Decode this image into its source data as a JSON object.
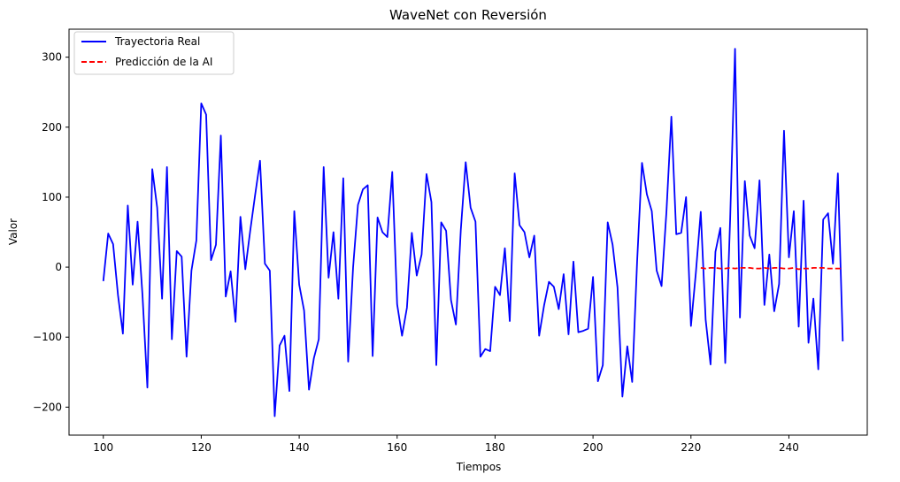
{
  "chart_data": {
    "type": "line",
    "title": "WaveNet con Reversión",
    "xlabel": "Tiempos",
    "ylabel": "Valor",
    "xlim": [
      93,
      256
    ],
    "ylim": [
      -240,
      340
    ],
    "xticks": [
      100,
      120,
      140,
      160,
      180,
      200,
      220,
      240
    ],
    "yticks": [
      -200,
      -100,
      0,
      100,
      200,
      300
    ],
    "legend": "top-left",
    "grid": false,
    "series": [
      {
        "name": "Trayectoria Real",
        "color": "#0000ff",
        "style": "solid",
        "x_start": 100,
        "values": [
          -20,
          48,
          33,
          -40,
          -95,
          88,
          -25,
          65,
          -40,
          -172,
          140,
          85,
          -45,
          143,
          -103,
          23,
          15,
          -128,
          -5,
          38,
          234,
          218,
          10,
          32,
          188,
          -42,
          -6,
          -78,
          72,
          -3,
          52,
          103,
          152,
          5,
          -5,
          -213,
          -112,
          -98,
          -177,
          80,
          -25,
          -62,
          -175,
          -130,
          -103,
          143,
          -15,
          50,
          -45,
          127,
          -135,
          -1,
          89,
          111,
          117,
          -127,
          71,
          50,
          43,
          136,
          -53,
          -98,
          -58,
          49,
          -12,
          18,
          133,
          93,
          -140,
          64,
          52,
          -47,
          -82,
          53,
          150,
          85,
          65,
          -128,
          -117,
          -120,
          -28,
          -40,
          27,
          -77,
          134,
          60,
          50,
          14,
          45,
          -98,
          -55,
          -21,
          -28,
          -60,
          -10,
          -96,
          8,
          -93,
          -91,
          -88,
          -14,
          -163,
          -140,
          64,
          32,
          -29,
          -185,
          -113,
          -164,
          7,
          149,
          104,
          80,
          -5,
          -27,
          80,
          215,
          47,
          49,
          100,
          -84,
          -8,
          79,
          -75,
          -139,
          22,
          56,
          -137,
          68,
          312,
          -72,
          123,
          45,
          27,
          124,
          -54,
          18,
          -63,
          -24,
          195,
          14,
          80,
          -85,
          95,
          -108,
          -45,
          -146,
          68,
          77,
          5,
          134,
          -106
        ]
      },
      {
        "name": "Predicción de la AI",
        "color": "#ff0000",
        "style": "dashed",
        "x_start": 222,
        "values": [
          -1,
          -2,
          -1,
          -1,
          -2,
          -2,
          -1,
          -2,
          -1,
          -1,
          -1,
          -2,
          -2,
          -1,
          -2,
          -1,
          -1,
          -2,
          -2,
          -1,
          -3,
          -2,
          -2,
          -1,
          -1,
          -1,
          -2,
          -2,
          -2,
          -2
        ]
      }
    ]
  }
}
